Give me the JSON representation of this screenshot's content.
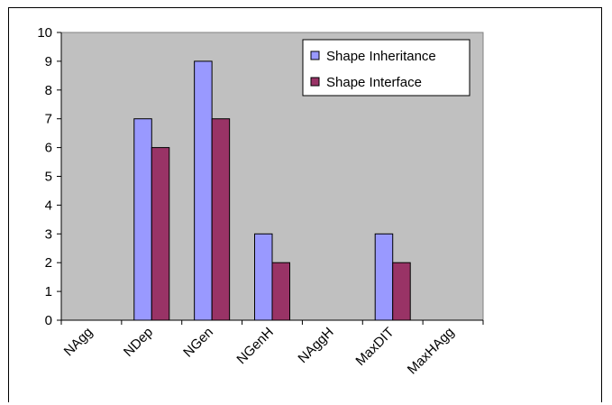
{
  "chart_data": {
    "type": "bar",
    "categories": [
      "NAgg",
      "NDep",
      "NGen",
      "NGenH",
      "NAggH",
      "MaxDIT",
      "MaxHAgg"
    ],
    "series": [
      {
        "name": "Shape Inheritance",
        "values": [
          0,
          7,
          9,
          3,
          0,
          3,
          0
        ],
        "color": "#9999ff"
      },
      {
        "name": "Shape Interface",
        "values": [
          0,
          6,
          7,
          2,
          0,
          2,
          0
        ],
        "color": "#993366"
      }
    ],
    "ylim": [
      0,
      10
    ],
    "yticks": [
      0,
      1,
      2,
      3,
      4,
      5,
      6,
      7,
      8,
      9,
      10
    ],
    "title": "",
    "xlabel": "",
    "ylabel": "",
    "plot_background": "#c0c0c0",
    "grid": false,
    "legend_position": "top-right, inside plot"
  }
}
